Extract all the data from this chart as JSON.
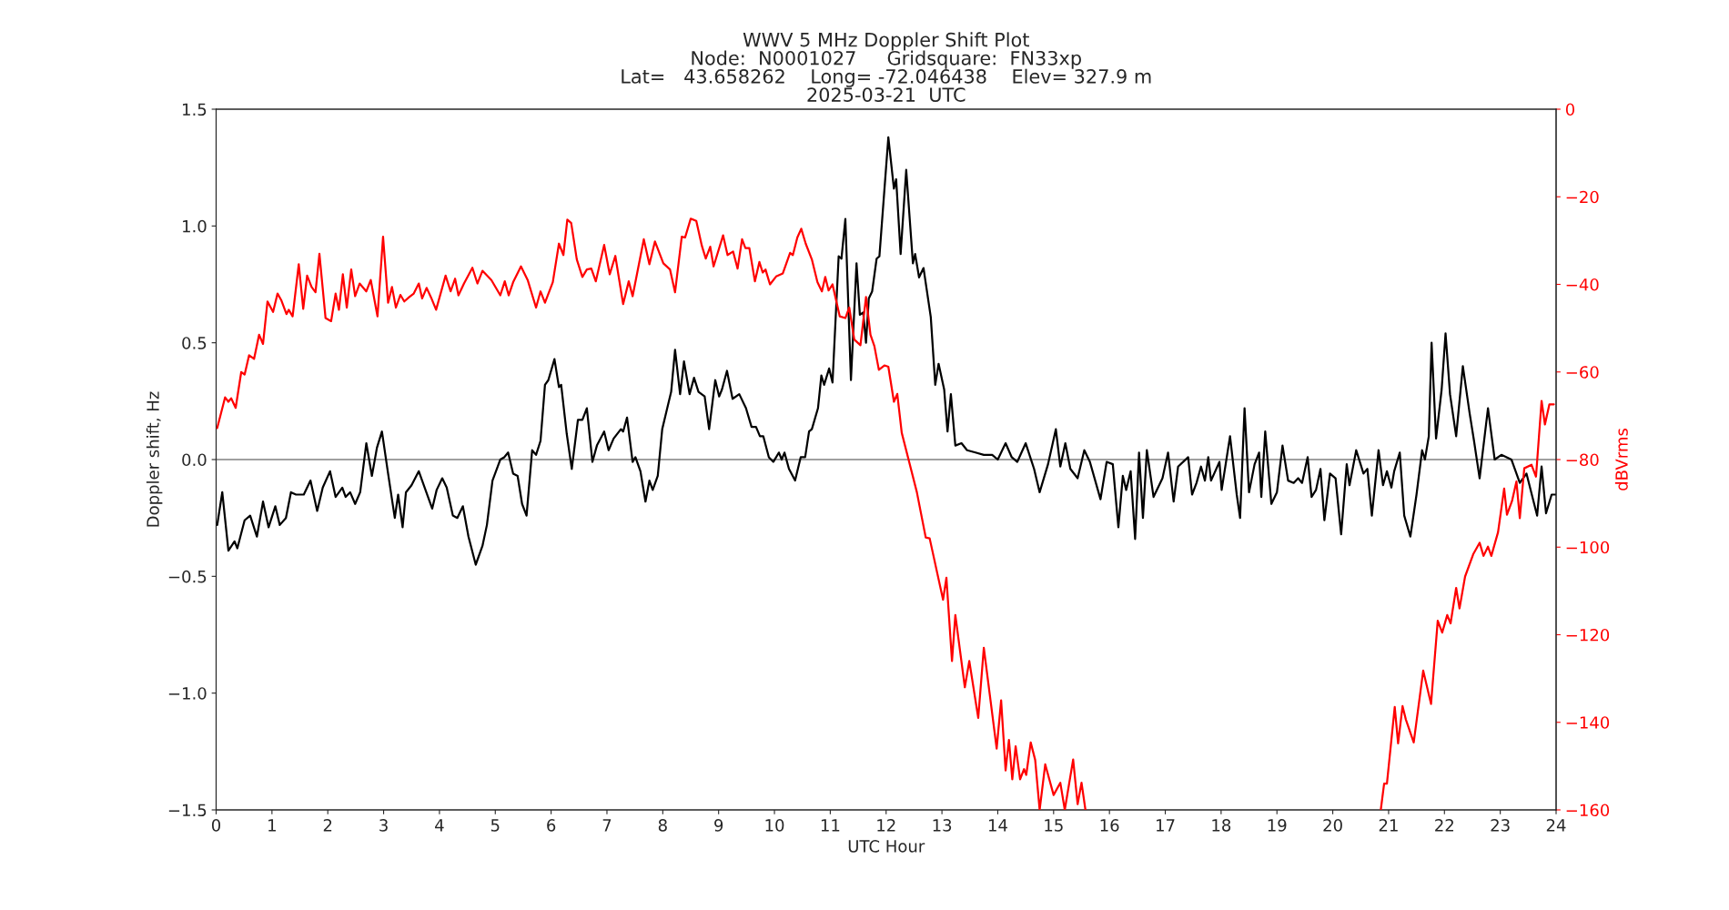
{
  "chart_data": {
    "type": "line",
    "title": "WWV 5 MHz Doppler Shift Plot\nNode:  N0001027     Gridsquare:  FN33xp\nLat=   43.658262    Long= -72.046438    Elev= 327.9 m\n2025-03-21  UTC",
    "xlabel": "UTC Hour",
    "ylabel": "Doppler shift, Hz",
    "y2label": "dBVrms",
    "xlim": [
      0,
      24
    ],
    "xticks": [
      0,
      1,
      2,
      3,
      4,
      5,
      6,
      7,
      8,
      9,
      10,
      11,
      12,
      13,
      14,
      15,
      16,
      17,
      18,
      19,
      20,
      21,
      22,
      23,
      24
    ],
    "ylim": [
      -1.5,
      1.5
    ],
    "yticks": [
      {
        "value": -1.5,
        "label": "−1.5"
      },
      {
        "value": -1.0,
        "label": "−1.0"
      },
      {
        "value": -0.5,
        "label": "−0.5"
      },
      {
        "value": 0,
        "label": "0.0"
      },
      0.5,
      {
        "value": 1,
        "label": "1.0"
      },
      1.5
    ],
    "y2lim": [
      -160,
      0
    ],
    "y2ticks": [
      {
        "value": -160,
        "label": "−160"
      },
      {
        "value": -140,
        "label": "−140"
      },
      {
        "value": -120,
        "label": "−120"
      },
      {
        "value": -100,
        "label": "−100"
      },
      {
        "value": -80,
        "label": "−80"
      },
      {
        "value": -60,
        "label": "−60"
      },
      {
        "value": -40,
        "label": "−40"
      },
      {
        "value": -20,
        "label": "−20"
      },
      0
    ],
    "ref_lines": [
      {
        "axis": "y",
        "value": 0,
        "color": "#808080"
      }
    ],
    "series": [
      {
        "color": "#000000",
        "axis": "y",
        "x": [
          0.02,
          0.11,
          0.22,
          0.33,
          0.38,
          0.51,
          0.61,
          0.73,
          0.84,
          0.94,
          1.06,
          1.14,
          1.25,
          1.34,
          1.43,
          1.57,
          1.69,
          1.81,
          1.91,
          2.04,
          2.14,
          2.26,
          2.32,
          2.4,
          2.49,
          2.58,
          2.69,
          2.79,
          2.88,
          2.97,
          3.08,
          3.2,
          3.26,
          3.34,
          3.4,
          3.5,
          3.63,
          3.75,
          3.87,
          3.95,
          4.05,
          4.13,
          4.24,
          4.32,
          4.42,
          4.52,
          4.65,
          4.77,
          4.85,
          4.95,
          5.09,
          5.16,
          5.23,
          5.32,
          5.4,
          5.48,
          5.56,
          5.66,
          5.73,
          5.81,
          5.89,
          5.95,
          6.06,
          6.14,
          6.18,
          6.28,
          6.37,
          6.48,
          6.56,
          6.64,
          6.74,
          6.82,
          6.95,
          7.03,
          7.12,
          7.25,
          7.29,
          7.36,
          7.46,
          7.51,
          7.6,
          7.69,
          7.76,
          7.82,
          7.91,
          7.99,
          8.07,
          8.15,
          8.22,
          8.31,
          8.38,
          8.48,
          8.56,
          8.64,
          8.75,
          8.83,
          8.94,
          9.01,
          9.06,
          9.15,
          9.25,
          9.37,
          9.49,
          9.59,
          9.67,
          9.74,
          9.8,
          9.9,
          9.98,
          10.08,
          10.13,
          10.18,
          10.26,
          10.37,
          10.47,
          10.55,
          10.62,
          10.67,
          10.78,
          10.84,
          10.89,
          10.98,
          11.04,
          11.15,
          11.2,
          11.27,
          11.37,
          11.47,
          11.53,
          11.59,
          11.64,
          11.69,
          11.75,
          11.83,
          11.88,
          12.04,
          12.14,
          12.18,
          12.26,
          12.36,
          12.48,
          12.52,
          12.59,
          12.67,
          12.8,
          12.88,
          12.94,
          13.04,
          13.1,
          13.16,
          13.24,
          13.35,
          13.45,
          13.6,
          13.75,
          13.9,
          14.0,
          14.14,
          14.25,
          14.35,
          14.5,
          14.65,
          14.75,
          14.9,
          15.04,
          15.12,
          15.21,
          15.3,
          15.43,
          15.55,
          15.65,
          15.84,
          15.95,
          16.06,
          16.16,
          16.24,
          16.3,
          16.38,
          16.46,
          16.53,
          16.6,
          16.67,
          16.79,
          16.95,
          17.05,
          17.15,
          17.23,
          17.41,
          17.48,
          17.56,
          17.64,
          17.71,
          17.77,
          17.82,
          17.97,
          18.01,
          18.16,
          18.28,
          18.34,
          18.42,
          18.5,
          18.6,
          18.68,
          18.72,
          18.79,
          18.9,
          19.0,
          19.1,
          19.2,
          19.3,
          19.38,
          19.45,
          19.55,
          19.62,
          19.7,
          19.78,
          19.85,
          19.95,
          20.05,
          20.15,
          20.25,
          20.3,
          20.42,
          20.55,
          20.62,
          20.7,
          20.82,
          20.9,
          20.97,
          21.05,
          21.1,
          21.2,
          21.28,
          21.39,
          21.5,
          21.6,
          21.65,
          21.72,
          21.77,
          21.85,
          21.95,
          22.02,
          22.1,
          22.21,
          22.33,
          22.45,
          22.53,
          22.63,
          22.78,
          22.9,
          23.02,
          23.2,
          23.35,
          23.47,
          23.66,
          23.74,
          23.82,
          23.92,
          24.0
        ],
        "values": [
          -0.28,
          -0.14,
          -0.39,
          -0.35,
          -0.38,
          -0.26,
          -0.24,
          -0.33,
          -0.18,
          -0.29,
          -0.2,
          -0.28,
          -0.25,
          -0.14,
          -0.15,
          -0.15,
          -0.09,
          -0.22,
          -0.12,
          -0.05,
          -0.16,
          -0.12,
          -0.16,
          -0.14,
          -0.19,
          -0.14,
          0.07,
          -0.07,
          0.05,
          0.12,
          -0.06,
          -0.25,
          -0.15,
          -0.29,
          -0.14,
          -0.11,
          -0.05,
          -0.13,
          -0.21,
          -0.13,
          -0.08,
          -0.12,
          -0.24,
          -0.25,
          -0.2,
          -0.33,
          -0.45,
          -0.37,
          -0.28,
          -0.09,
          0.0,
          0.01,
          0.03,
          -0.06,
          -0.07,
          -0.19,
          -0.24,
          0.04,
          0.02,
          0.08,
          0.32,
          0.34,
          0.43,
          0.31,
          0.32,
          0.11,
          -0.04,
          0.17,
          0.17,
          0.22,
          -0.01,
          0.06,
          0.12,
          0.04,
          0.09,
          0.13,
          0.12,
          0.18,
          -0.01,
          0.01,
          -0.05,
          -0.18,
          -0.09,
          -0.13,
          -0.07,
          0.13,
          0.21,
          0.29,
          0.47,
          0.28,
          0.42,
          0.28,
          0.35,
          0.29,
          0.27,
          0.13,
          0.34,
          0.27,
          0.3,
          0.38,
          0.26,
          0.28,
          0.22,
          0.14,
          0.14,
          0.1,
          0.1,
          0.01,
          -0.01,
          0.03,
          0.0,
          0.03,
          -0.04,
          -0.09,
          0.01,
          0.01,
          0.12,
          0.13,
          0.22,
          0.36,
          0.32,
          0.39,
          0.33,
          0.87,
          0.86,
          1.03,
          0.34,
          0.84,
          0.62,
          0.63,
          0.5,
          0.69,
          0.72,
          0.86,
          0.87,
          1.38,
          1.16,
          1.2,
          0.88,
          1.24,
          0.84,
          0.88,
          0.78,
          0.82,
          0.61,
          0.32,
          0.41,
          0.3,
          0.12,
          0.28,
          0.06,
          0.07,
          0.04,
          0.03,
          0.02,
          0.02,
          0.0,
          0.07,
          0.01,
          -0.01,
          0.07,
          -0.04,
          -0.14,
          -0.02,
          0.13,
          -0.03,
          0.07,
          -0.04,
          -0.08,
          0.04,
          -0.01,
          -0.17,
          -0.01,
          -0.02,
          -0.29,
          -0.07,
          -0.13,
          -0.05,
          -0.34,
          0.03,
          -0.25,
          0.04,
          -0.16,
          -0.08,
          0.03,
          -0.18,
          -0.03,
          0.01,
          -0.15,
          -0.1,
          -0.03,
          -0.09,
          0.01,
          -0.09,
          -0.01,
          -0.13,
          0.1,
          -0.15,
          -0.25,
          0.22,
          -0.14,
          -0.02,
          0.03,
          -0.16,
          0.12,
          -0.19,
          -0.14,
          0.06,
          -0.09,
          -0.1,
          -0.08,
          -0.1,
          0.01,
          -0.16,
          -0.13,
          -0.04,
          -0.26,
          -0.06,
          -0.08,
          -0.32,
          -0.02,
          -0.11,
          0.04,
          -0.06,
          -0.04,
          -0.24,
          0.04,
          -0.11,
          -0.05,
          -0.12,
          -0.05,
          0.03,
          -0.24,
          -0.33,
          -0.15,
          0.04,
          0.0,
          0.1,
          0.5,
          0.09,
          0.3,
          0.54,
          0.28,
          0.1,
          0.4,
          0.2,
          0.08,
          -0.08,
          0.22,
          0.0,
          0.02,
          0.0,
          -0.1,
          -0.06,
          -0.24,
          -0.03,
          -0.23,
          -0.15,
          -0.15
        ]
      },
      {
        "color": "#ff0000",
        "axis": "y2",
        "x": [
          0.02,
          0.16,
          0.22,
          0.27,
          0.35,
          0.45,
          0.51,
          0.59,
          0.68,
          0.77,
          0.84,
          0.92,
          1.02,
          1.1,
          1.17,
          1.26,
          1.3,
          1.37,
          1.48,
          1.56,
          1.63,
          1.71,
          1.78,
          1.85,
          1.96,
          2.06,
          2.14,
          2.2,
          2.27,
          2.34,
          2.42,
          2.49,
          2.57,
          2.69,
          2.77,
          2.89,
          2.99,
          3.08,
          3.15,
          3.22,
          3.3,
          3.37,
          3.46,
          3.54,
          3.63,
          3.69,
          3.77,
          3.85,
          3.94,
          4.11,
          4.2,
          4.28,
          4.34,
          4.44,
          4.59,
          4.68,
          4.77,
          4.93,
          5.09,
          5.17,
          5.24,
          5.32,
          5.46,
          5.58,
          5.73,
          5.81,
          5.89,
          6.03,
          6.14,
          6.22,
          6.29,
          6.36,
          6.46,
          6.56,
          6.64,
          6.72,
          6.8,
          6.95,
          7.05,
          7.15,
          7.29,
          7.39,
          7.46,
          7.66,
          7.76,
          7.86,
          8.01,
          8.13,
          8.22,
          8.34,
          8.4,
          8.5,
          8.6,
          8.7,
          8.77,
          8.85,
          8.91,
          9.08,
          9.16,
          9.26,
          9.34,
          9.42,
          9.48,
          9.55,
          9.65,
          9.73,
          9.79,
          9.84,
          9.92,
          10.03,
          10.15,
          10.28,
          10.33,
          10.41,
          10.48,
          10.56,
          10.67,
          10.77,
          10.85,
          10.91,
          10.97,
          11.04,
          11.17,
          11.27,
          11.34,
          11.43,
          11.54,
          11.64,
          11.72,
          11.79,
          11.87,
          11.97,
          12.04,
          12.14,
          12.2,
          12.28,
          12.55,
          12.71,
          12.78,
          13.02,
          13.08,
          13.18,
          13.24,
          13.41,
          13.49,
          13.65,
          13.75,
          13.98,
          14.06,
          14.14,
          14.2,
          14.26,
          14.32,
          14.4,
          14.47,
          14.51,
          14.59,
          14.67,
          14.75,
          14.85,
          15.0,
          15.12,
          15.2,
          15.35,
          15.43,
          15.5,
          15.57,
          18.0,
          20.86,
          20.92,
          20.97,
          21.11,
          21.17,
          21.25,
          21.31,
          21.45,
          21.62,
          21.76,
          21.88,
          21.96,
          22.05,
          22.11,
          22.21,
          22.27,
          22.37,
          22.52,
          22.63,
          22.7,
          22.78,
          22.84,
          22.96,
          23.07,
          23.12,
          23.21,
          23.29,
          23.35,
          23.43,
          23.56,
          23.64,
          23.74,
          23.8,
          23.88,
          23.96
        ],
        "values": [
          -72.8,
          -65.8,
          -66.8,
          -66,
          -68.2,
          -60,
          -60.6,
          -56.2,
          -57,
          -51.5,
          -53.6,
          -43.9,
          -46.3,
          -42.1,
          -43.7,
          -46.8,
          -45.8,
          -47.3,
          -35.4,
          -45.6,
          -38,
          -40.6,
          -41.8,
          -33,
          -47.7,
          -48.4,
          -42.1,
          -45.8,
          -37.7,
          -45.3,
          -36.6,
          -42.7,
          -39.8,
          -41.6,
          -39,
          -47.3,
          -29.1,
          -44.2,
          -40.6,
          -45.3,
          -42.4,
          -43.9,
          -42.9,
          -42.1,
          -39.8,
          -43.2,
          -40.8,
          -43,
          -45.8,
          -38,
          -41.6,
          -38.7,
          -42.5,
          -39.8,
          -36.2,
          -39.8,
          -36.9,
          -39,
          -42.5,
          -39.3,
          -42.5,
          -39.5,
          -35.9,
          -39,
          -45.3,
          -41.6,
          -44.2,
          -39.5,
          -30.7,
          -33.3,
          -25.2,
          -26,
          -34.3,
          -38.3,
          -36.6,
          -36.4,
          -39.3,
          -31,
          -37.7,
          -33.5,
          -44.5,
          -39.3,
          -42.7,
          -29.7,
          -35.4,
          -30.2,
          -35.2,
          -36.6,
          -41.8,
          -29.1,
          -29.3,
          -25,
          -25.5,
          -31.2,
          -34.1,
          -31.4,
          -35.9,
          -28.8,
          -33.3,
          -32.5,
          -36.4,
          -29.7,
          -31.7,
          -31.7,
          -39.3,
          -34.9,
          -37.3,
          -36.6,
          -40,
          -38.2,
          -37.5,
          -32.8,
          -33.3,
          -29.3,
          -27.3,
          -30.7,
          -34.3,
          -39.5,
          -41.6,
          -38.3,
          -41.4,
          -40,
          -47.3,
          -47.7,
          -45.3,
          -52.6,
          -53.9,
          -42.9,
          -51.5,
          -54.1,
          -59.5,
          -58.5,
          -58.8,
          -66.8,
          -65,
          -73.9,
          -87.4,
          -97.8,
          -98,
          -112,
          -107,
          -126,
          -115.5,
          -132,
          -126,
          -139,
          -123,
          -146,
          -135,
          -151,
          -144,
          -153,
          -145.5,
          -153,
          -150.7,
          -152,
          -144.6,
          -148.6,
          -160,
          -149.6,
          -156.6,
          -153.8,
          -160,
          -148.5,
          -158.7,
          -153.8,
          -160,
          null,
          -160,
          -154,
          -154,
          -136.5,
          -144.8,
          -136.3,
          -139.4,
          -144.6,
          -128.2,
          -135.8,
          -116.8,
          -119.5,
          -115.5,
          -117.4,
          -109.3,
          -114,
          -106.7,
          -101.5,
          -99,
          -102,
          -99.9,
          -102,
          -96.6,
          -86.6,
          -92.6,
          -89.5,
          -85,
          -93.4,
          -82,
          -81.2,
          -83.9,
          -66.6,
          -72,
          -67.4,
          -67.4
        ]
      }
    ]
  }
}
